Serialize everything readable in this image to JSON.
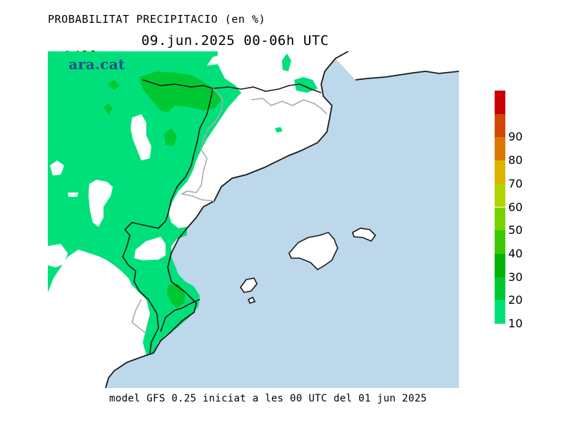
{
  "header": {
    "title": "PROBABILITAT PRECIPITACIO (en %)",
    "day": "Dilluns",
    "period": "09.jun.2025 00-06h UTC"
  },
  "logo_text": "ara.cat",
  "footer": "model GFS 0.25 iniciat a les 00 UTC del 01 jun 2025",
  "legend": {
    "segments": [
      {
        "color": "#00e07a"
      },
      {
        "color": "#00c832"
      },
      {
        "color": "#00b400"
      },
      {
        "color": "#3cc800"
      },
      {
        "color": "#78d200"
      },
      {
        "color": "#b4d200"
      },
      {
        "color": "#dcb400"
      },
      {
        "color": "#dc7800"
      },
      {
        "color": "#d24600"
      },
      {
        "color": "#c80000"
      }
    ],
    "labels": [
      "10",
      "20",
      "30",
      "40",
      "50",
      "60",
      "70",
      "80",
      "90"
    ]
  },
  "colors": {
    "sea": "#bcd8ea",
    "land": "#ffffff",
    "prob_10_20": "#00e07a",
    "prob_20_30": "#00c832",
    "coast": "#1a1a1a",
    "border": "#aaaaaa"
  }
}
